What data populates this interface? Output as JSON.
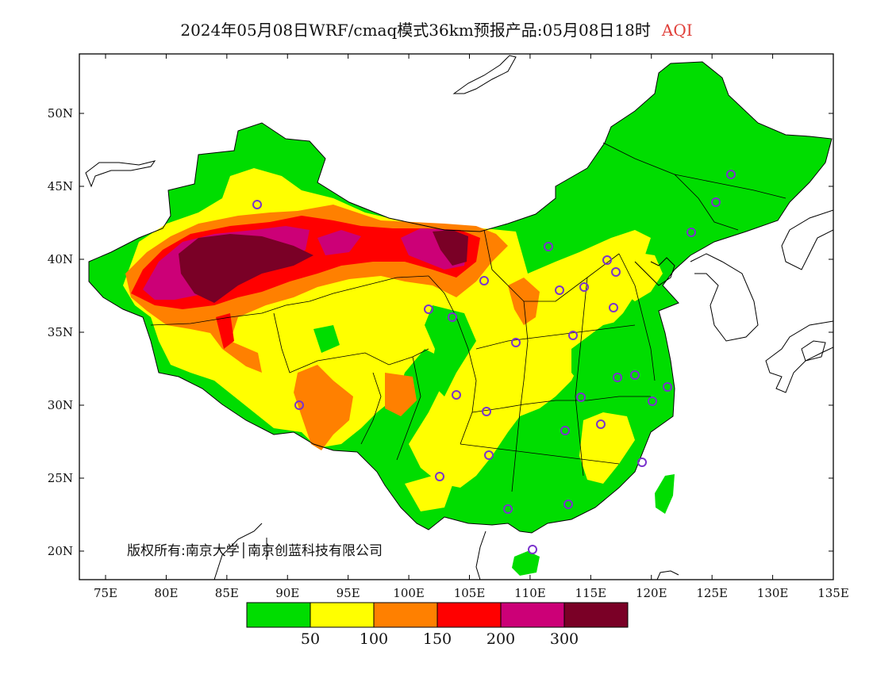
{
  "title": {
    "main": "2024年05月08日WRF/cmaq模式36km预报产品:05月08日18时",
    "variable": "AQI",
    "variable_color": "#e0403a"
  },
  "axes": {
    "lat_ticks": [
      "50N",
      "45N",
      "40N",
      "35N",
      "30N",
      "25N",
      "20N"
    ],
    "lon_ticks": [
      "75E",
      "80E",
      "85E",
      "90E",
      "95E",
      "100E",
      "105E",
      "110E",
      "115E",
      "120E",
      "125E",
      "130E",
      "135E"
    ]
  },
  "colorbar": {
    "colors": [
      "#00dd00",
      "#ffff00",
      "#ff8000",
      "#ff0000",
      "#cc0077",
      "#7a0026"
    ],
    "labels": [
      "50",
      "100",
      "150",
      "200",
      "300"
    ]
  },
  "copyright": "版权所有:南京大学│南京创蓝科技有限公司",
  "colors": {
    "green": "#00dd00",
    "yellow": "#ffff00",
    "orange": "#ff8000",
    "red": "#ff0000",
    "magenta": "#cc0077",
    "maroon": "#7a0026",
    "city_marker": "#7a33cc"
  }
}
